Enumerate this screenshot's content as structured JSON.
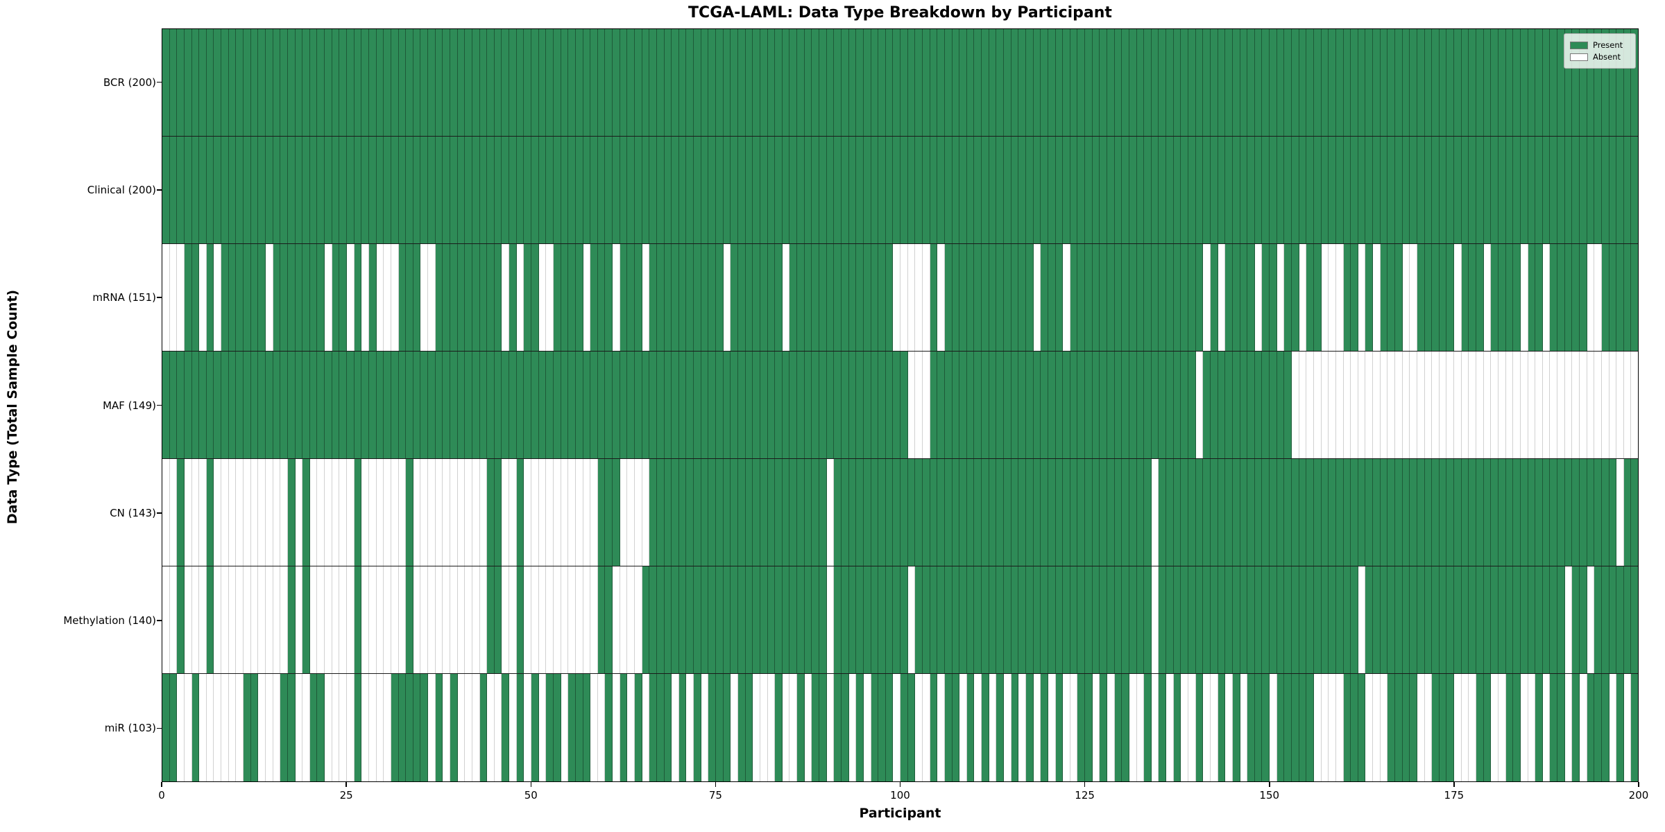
{
  "title": "TCGA-LAML: Data Type Breakdown by Participant",
  "xlabel": "Participant",
  "ylabel": "Data Type (Total Sample Count)",
  "legend": {
    "present_label": "Present",
    "absent_label": "Absent"
  },
  "colors": {
    "present": "#2e8b57",
    "absent": "#ffffff",
    "grid_on_green": "rgba(0,0,0,0.35)",
    "grid_on_white": "rgba(0,0,0,0.18)",
    "row_separator": "#1a1a1a"
  },
  "chart_data": {
    "type": "heatmap",
    "title": "TCGA-LAML: Data Type Breakdown by Participant",
    "xlabel": "Participant",
    "ylabel": "Data Type (Total Sample Count)",
    "x_ticks": [
      0,
      25,
      50,
      75,
      100,
      125,
      150,
      175,
      200
    ],
    "x_range": [
      0,
      200
    ],
    "n_participants": 200,
    "legend_position": "upper right",
    "grid": "cell-borders",
    "value_meaning": {
      "present": 1,
      "absent": 0
    },
    "rows": [
      {
        "label": "BCR (200)",
        "data_type": "BCR",
        "present_count": 200,
        "absent_cols": []
      },
      {
        "label": "Clinical (200)",
        "data_type": "Clinical",
        "present_count": 200,
        "absent_cols": []
      },
      {
        "label": "mRNA (151)",
        "data_type": "mRNA",
        "present_count": 151,
        "absent_cols": [
          0,
          1,
          2,
          5,
          7,
          14,
          22,
          25,
          27,
          29,
          30,
          31,
          35,
          36,
          46,
          48,
          51,
          52,
          57,
          61,
          65,
          76,
          84,
          99,
          100,
          101,
          102,
          103,
          105,
          118,
          122,
          141,
          143,
          148,
          151,
          154,
          157,
          158,
          159,
          162,
          164,
          168,
          169,
          175,
          179,
          184,
          187,
          193,
          194
        ]
      },
      {
        "label": "MAF (149)",
        "data_type": "MAF",
        "present_count": 149,
        "absent_cols": [
          101,
          102,
          103,
          140,
          153,
          154,
          155,
          156,
          157,
          158,
          159,
          160,
          161,
          162,
          163,
          164,
          165,
          166,
          167,
          168,
          169,
          170,
          171,
          172,
          173,
          174,
          175,
          176,
          177,
          178,
          179,
          180,
          181,
          182,
          183,
          184,
          185,
          186,
          187,
          188,
          189,
          190,
          191,
          192,
          193,
          194,
          195,
          196,
          197,
          198,
          199
        ]
      },
      {
        "label": "CN (143)",
        "data_type": "CN",
        "present_count": 143,
        "absent_cols": [
          0,
          1,
          3,
          4,
          5,
          7,
          8,
          9,
          10,
          11,
          12,
          13,
          14,
          15,
          16,
          18,
          20,
          21,
          22,
          23,
          24,
          25,
          27,
          28,
          29,
          30,
          31,
          32,
          34,
          35,
          36,
          37,
          38,
          39,
          40,
          41,
          42,
          43,
          46,
          47,
          49,
          50,
          51,
          52,
          53,
          54,
          55,
          56,
          57,
          58,
          62,
          63,
          64,
          65,
          90,
          134,
          197
        ]
      },
      {
        "label": "Methylation (140)",
        "data_type": "Methylation",
        "present_count": 140,
        "absent_cols": [
          0,
          1,
          3,
          4,
          5,
          7,
          8,
          9,
          10,
          11,
          12,
          13,
          14,
          15,
          16,
          18,
          20,
          21,
          22,
          23,
          24,
          25,
          27,
          28,
          29,
          30,
          31,
          32,
          34,
          35,
          36,
          37,
          38,
          39,
          40,
          41,
          42,
          43,
          46,
          47,
          49,
          50,
          51,
          52,
          53,
          54,
          55,
          56,
          57,
          58,
          61,
          62,
          63,
          64,
          90,
          101,
          134,
          162,
          190,
          193
        ]
      },
      {
        "label": "miR (103)",
        "data_type": "miR",
        "present_count": 103,
        "absent_cols": [
          2,
          3,
          5,
          6,
          7,
          8,
          9,
          10,
          13,
          14,
          15,
          18,
          19,
          22,
          23,
          24,
          25,
          27,
          28,
          29,
          30,
          36,
          38,
          40,
          41,
          42,
          44,
          45,
          47,
          49,
          51,
          54,
          58,
          59,
          61,
          63,
          65,
          69,
          71,
          73,
          77,
          80,
          81,
          82,
          84,
          85,
          87,
          90,
          93,
          95,
          99,
          102,
          103,
          105,
          108,
          110,
          112,
          114,
          116,
          118,
          120,
          122,
          123,
          126,
          128,
          131,
          132,
          134,
          136,
          138,
          139,
          141,
          142,
          144,
          146,
          150,
          156,
          157,
          158,
          159,
          163,
          164,
          165,
          170,
          171,
          175,
          176,
          177,
          180,
          181,
          184,
          185,
          187,
          190,
          192,
          196,
          198
        ]
      }
    ]
  }
}
